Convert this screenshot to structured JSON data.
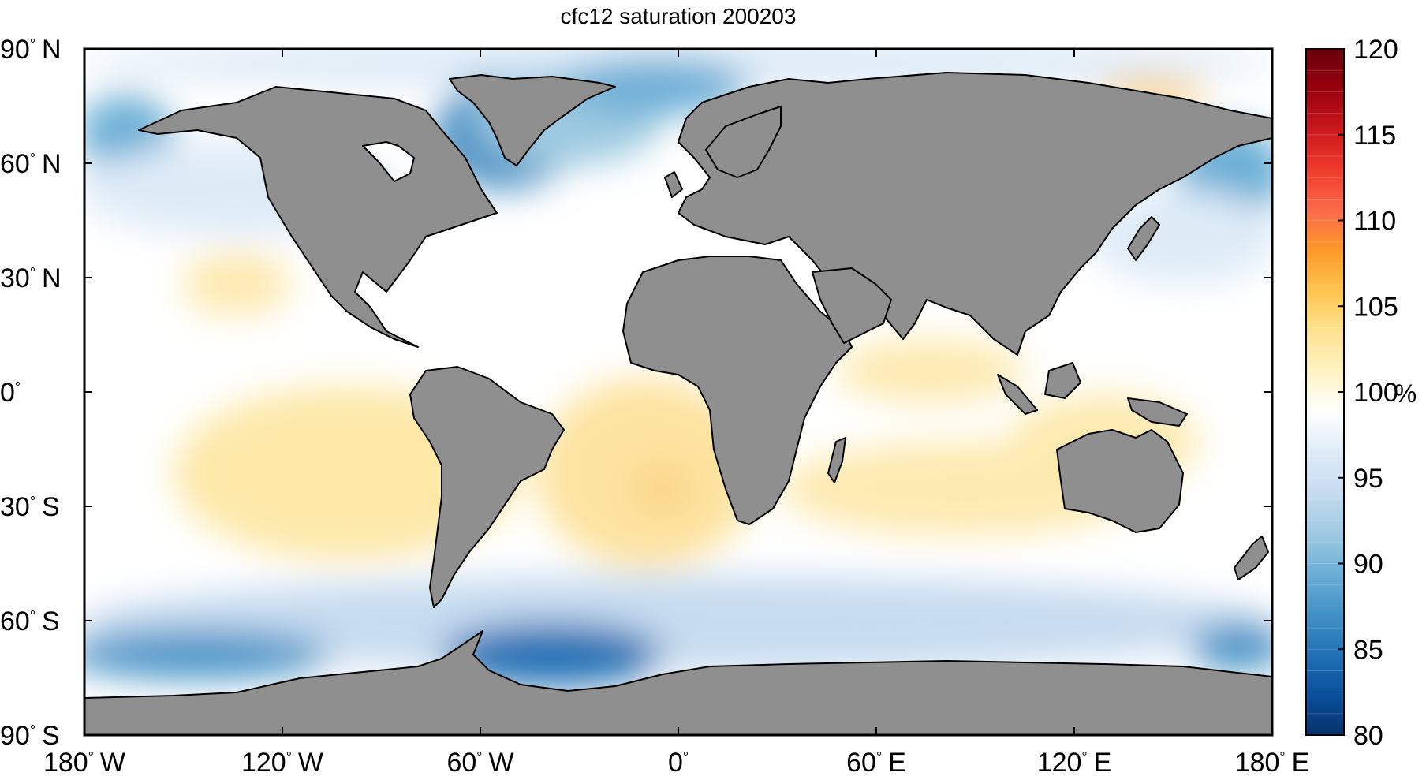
{
  "title": "cfc12 saturation 200203",
  "x_ticks": [
    {
      "lon": -180,
      "deg": "180",
      "hem": "W"
    },
    {
      "lon": -120,
      "deg": "120",
      "hem": "W"
    },
    {
      "lon": -60,
      "deg": "60",
      "hem": "W"
    },
    {
      "lon": 0,
      "deg": "0",
      "hem": ""
    },
    {
      "lon": 60,
      "deg": "60",
      "hem": "E"
    },
    {
      "lon": 120,
      "deg": "120",
      "hem": "E"
    },
    {
      "lon": 180,
      "deg": "180",
      "hem": "E"
    }
  ],
  "y_ticks": [
    {
      "lat": 90,
      "deg": "90",
      "hem": "N"
    },
    {
      "lat": 60,
      "deg": "60",
      "hem": "N"
    },
    {
      "lat": 30,
      "deg": "30",
      "hem": "N"
    },
    {
      "lat": 0,
      "deg": "0",
      "hem": ""
    },
    {
      "lat": -30,
      "deg": "30",
      "hem": "S"
    },
    {
      "lat": -60,
      "deg": "60",
      "hem": "S"
    },
    {
      "lat": -90,
      "deg": "90",
      "hem": "S"
    }
  ],
  "colorbar": {
    "min": 80,
    "max": 120,
    "ticks": [
      "120",
      "115",
      "110",
      "105",
      "100",
      "95",
      "90",
      "85",
      "80"
    ],
    "unit": "%",
    "colors": [
      "#08306b",
      "#08519c",
      "#2171b5",
      "#4292c6",
      "#6baed6",
      "#9ecae1",
      "#c6dbef",
      "#deebf7",
      "#ffffff",
      "#fff3c4",
      "#fee391",
      "#fec44f",
      "#fe9929",
      "#fb6a4a",
      "#ef3b2c",
      "#cb181d",
      "#99000d",
      "#67000d"
    ]
  },
  "colors": {
    "land": "#8f8f8f",
    "coast": "#000000",
    "frame": "#000000"
  }
}
